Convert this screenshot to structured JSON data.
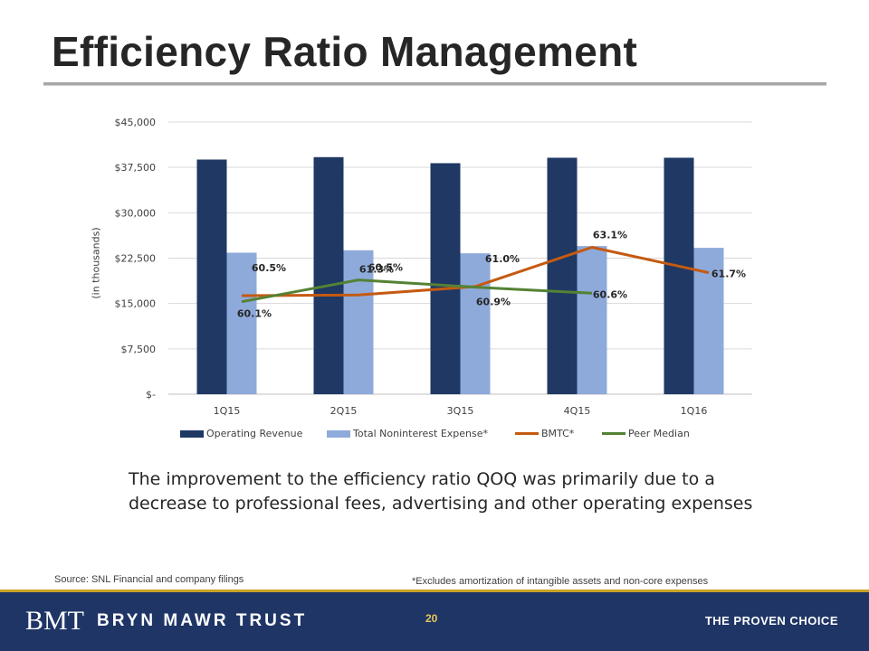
{
  "slide": {
    "title": "Efficiency Ratio Management",
    "commentary": "The improvement to the efficiency ratio QOQ was primarily due to a decrease to professional fees, advertising and other operating expenses",
    "source": "Source: SNL Financial and company filings",
    "footnote": "*Excludes amortization of intangible assets and non-core expenses",
    "page_number": "20"
  },
  "footer": {
    "logo_mark": "BMT",
    "logo_name": "BRYN MAWR TRUST",
    "tagline": "THE PROVEN CHOICE"
  },
  "chart_data": {
    "type": "bar",
    "ylabel": "(in thousands)",
    "ylim": [
      0,
      45000
    ],
    "ytick_values": [
      0,
      7500,
      15000,
      22500,
      30000,
      37500,
      45000
    ],
    "ytick_labels": [
      "$-",
      "$7,500",
      "$15,000",
      "$22,500",
      "$30,000",
      "$37,500",
      "$45,000"
    ],
    "categories": [
      "1Q15",
      "2Q15",
      "3Q15",
      "4Q15",
      "1Q16"
    ],
    "grid": true,
    "legend_position": "bottom",
    "series": [
      {
        "name": "Operating Revenue",
        "kind": "bar",
        "color": "#1f3864",
        "values": [
          38800,
          39200,
          38200,
          39100,
          39100
        ]
      },
      {
        "name": "Total Noninterest Expense*",
        "kind": "bar",
        "color": "#8eaadb",
        "values": [
          23400,
          23800,
          23300,
          24500,
          24200
        ]
      },
      {
        "name": "BMTC*",
        "kind": "line",
        "color": "#c55a11",
        "values": [
          16300,
          16400,
          17800,
          24300,
          20100
        ],
        "labels": [
          "60.5%",
          "60.5%",
          "61.0%",
          "63.1%",
          "61.7%"
        ]
      },
      {
        "name": "Peer Median",
        "kind": "line",
        "color": "#548235",
        "values": [
          15300,
          18900,
          17700,
          16700,
          null
        ],
        "labels": [
          "60.1%",
          "61.3%",
          "60.9%",
          "60.6%",
          null
        ]
      }
    ]
  }
}
